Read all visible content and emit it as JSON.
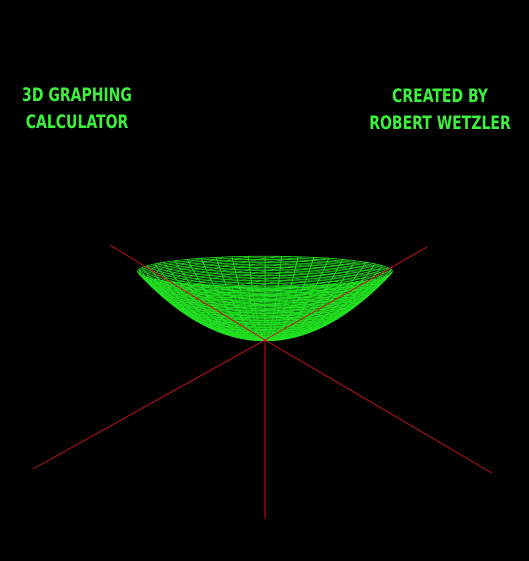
{
  "app": {
    "title_line1": "3D GRAPHING",
    "title_line2": "CALCULATOR",
    "credit_line1": "CREATED BY",
    "credit_line2": "ROBERT WETZLER"
  },
  "colors": {
    "background": "#000000",
    "surface": "#22e022",
    "axes": "#c81414",
    "text": "#3cf03c"
  },
  "surface": {
    "type": "paraboloid"
  }
}
